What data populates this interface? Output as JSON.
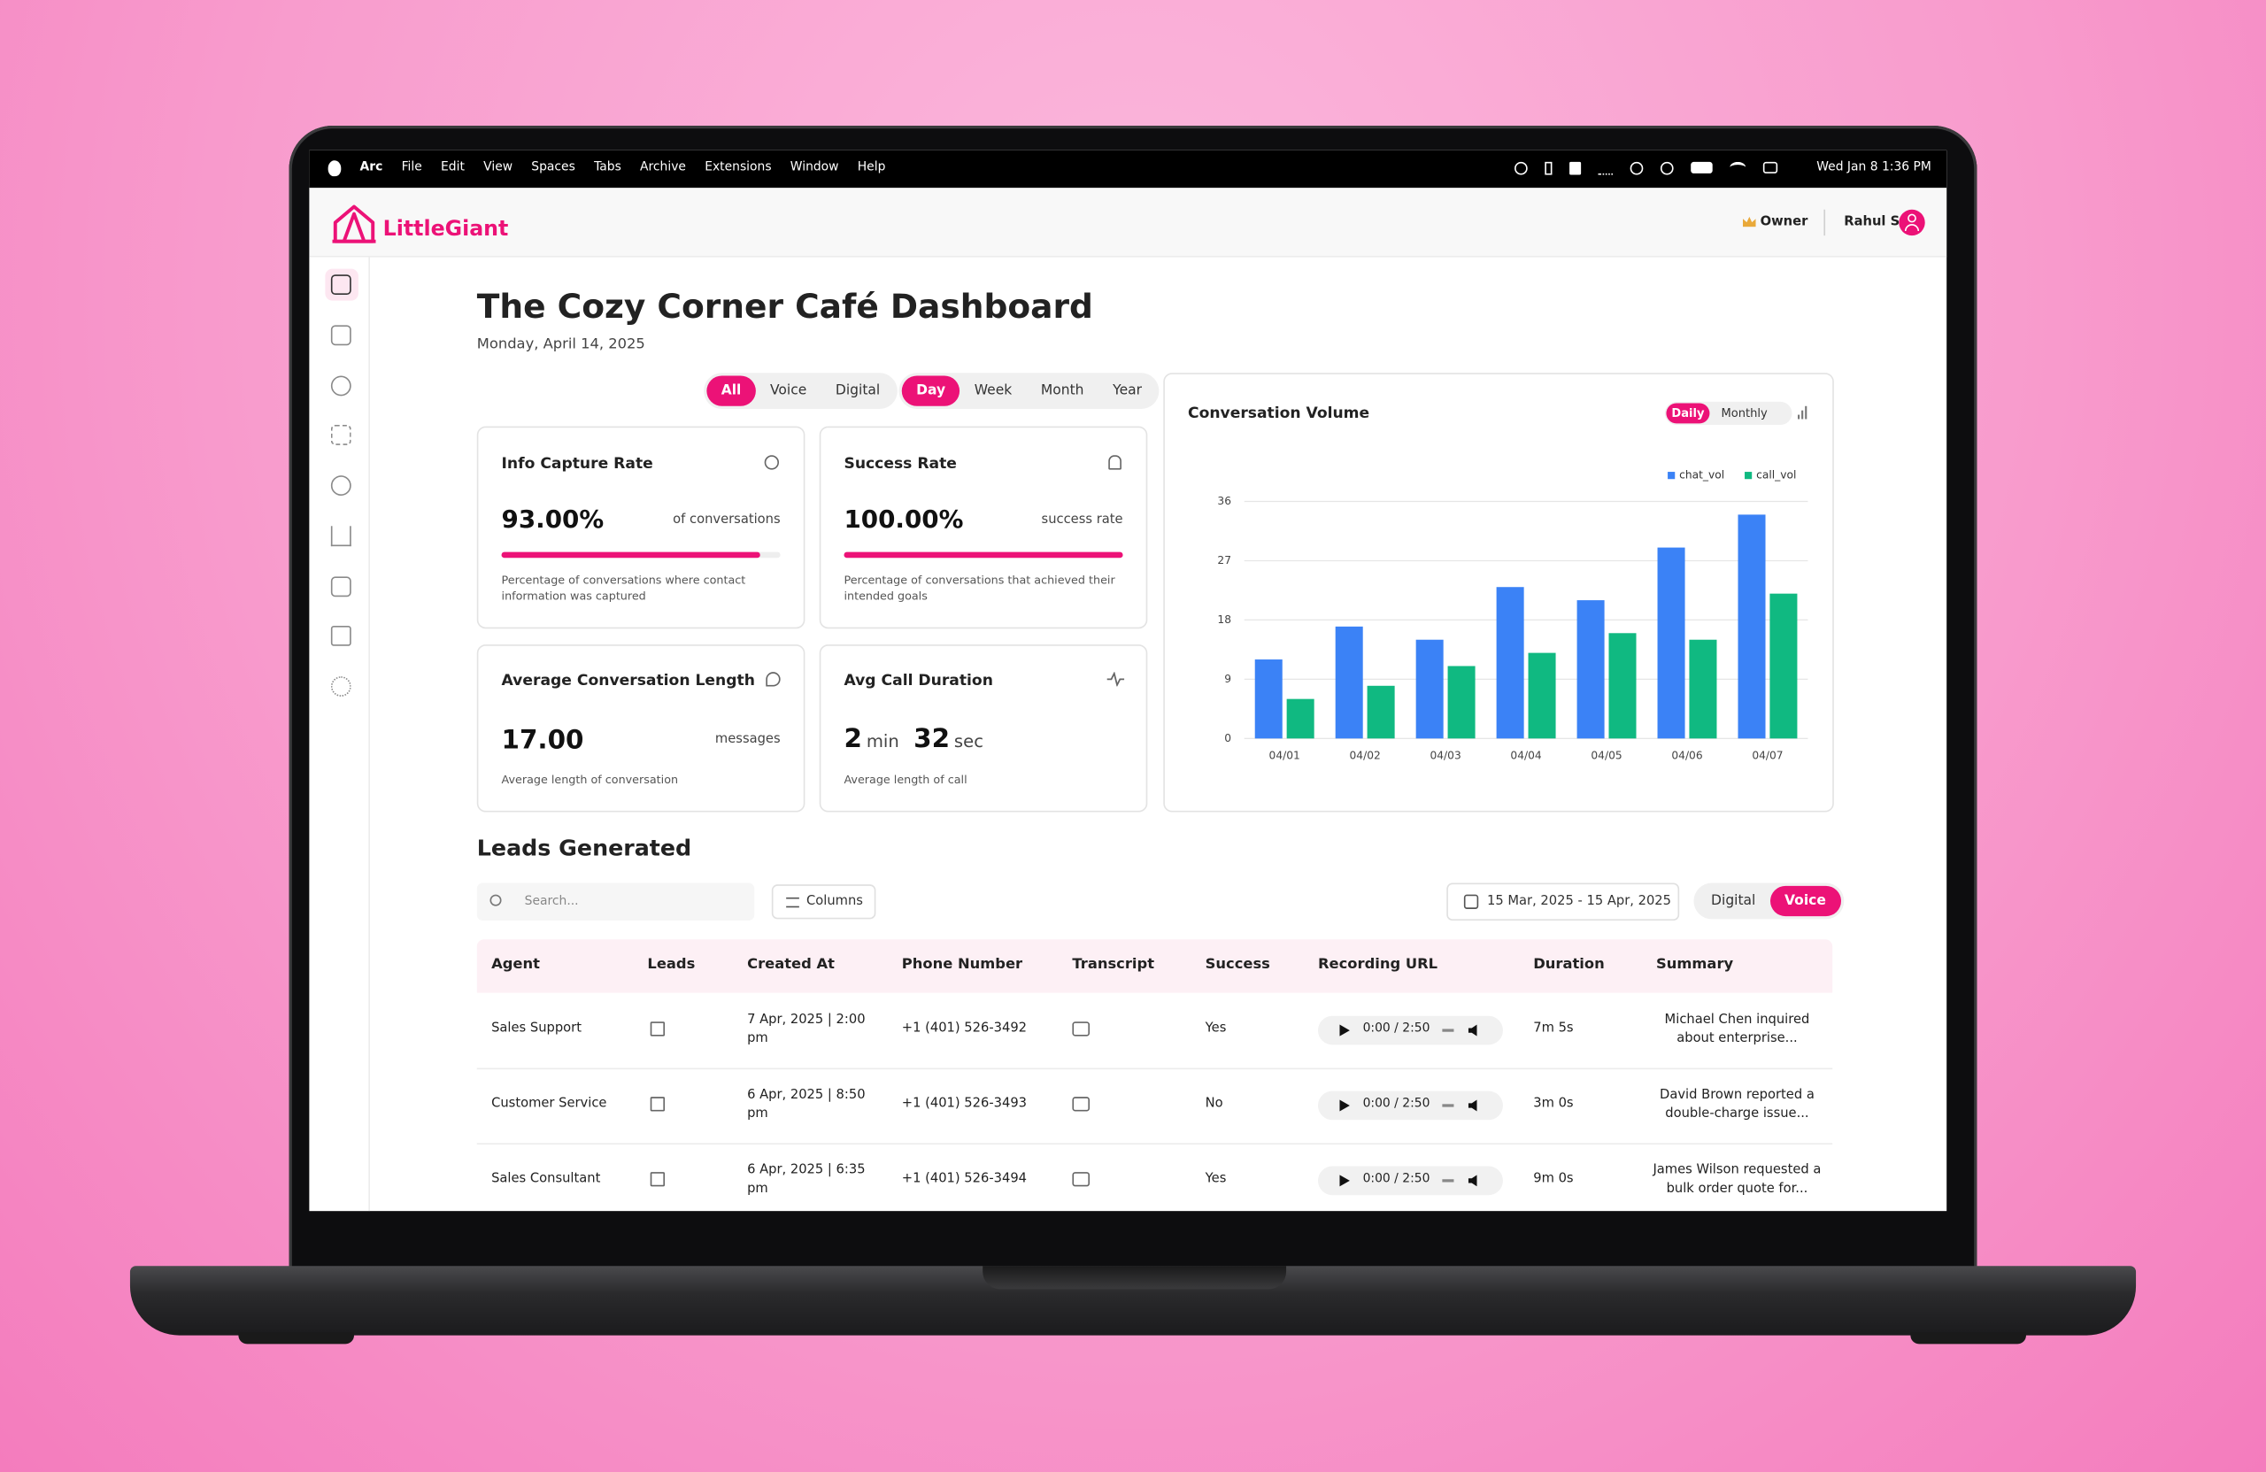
{
  "menubar": {
    "app": "Arc",
    "items": [
      "File",
      "Edit",
      "View",
      "Spaces",
      "Tabs",
      "Archive",
      "Extensions",
      "Window",
      "Help"
    ],
    "clock": "Wed Jan 8  1:36 PM"
  },
  "header": {
    "brand": "LittleGiant",
    "role": "Owner",
    "user": "Rahul S"
  },
  "page": {
    "title": "The Cozy Corner Café Dashboard",
    "date": "Monday, April 14, 2025",
    "channel_filters": [
      "All",
      "Voice",
      "Digital"
    ],
    "period_filters": [
      "Day",
      "Week",
      "Month",
      "Year"
    ]
  },
  "metrics": {
    "info_capture": {
      "title": "Info Capture Rate",
      "value": 93,
      "value_label": "93.00%",
      "unit": "of conversations",
      "description": "Percentage of conversations where contact information was captured"
    },
    "success": {
      "title": "Success Rate",
      "value": 100,
      "value_label": "100.00%",
      "unit": "success rate",
      "description": "Percentage of conversations that achieved their intended goals"
    },
    "avg_length": {
      "title": "Average Conversation Length",
      "value": "17.00",
      "unit": "messages",
      "description": "Average length of conversation"
    },
    "call_duration": {
      "title": "Avg Call Duration",
      "minutes": "2",
      "minutes_unit": "min",
      "seconds": "32",
      "seconds_unit": "sec",
      "description": "Average length of call"
    }
  },
  "chart_controls": [
    "Daily",
    "Monthly"
  ],
  "chart_data": {
    "type": "bar",
    "title": "Conversation Volume",
    "categories": [
      "04/01",
      "04/02",
      "04/03",
      "04/04",
      "04/05",
      "04/06",
      "04/07"
    ],
    "series": [
      {
        "name": "chat_vol",
        "color": "#3b82f6",
        "values": [
          12,
          17,
          15,
          23,
          21,
          29,
          34
        ]
      },
      {
        "name": "call_vol",
        "color": "#10b981",
        "values": [
          6,
          8,
          11,
          13,
          16,
          15,
          22
        ]
      }
    ],
    "ylim": [
      0,
      36
    ],
    "yticks": [
      0,
      9,
      18,
      27,
      36
    ],
    "grid": true,
    "legend": "top-right"
  },
  "leads": {
    "title": "Leads Generated",
    "search_placeholder": "Search...",
    "columns_button": "Columns",
    "date_range": "15 Mar, 2025 - 15 Apr, 2025",
    "channel_toggle": [
      "Digital",
      "Voice"
    ],
    "columns": [
      "Agent",
      "Leads",
      "Created At",
      "Phone Number",
      "Transcript",
      "Success",
      "Recording URL",
      "Duration",
      "Summary"
    ],
    "rows": [
      {
        "agent": "Sales Support",
        "created_at": "7 Apr, 2025 | 2:00 pm",
        "phone": "+1 (401) 526-3492",
        "success": "Yes",
        "recording": "0:00 / 2:50",
        "duration": "7m 5s",
        "summary": "Michael Chen inquired about enterprise..."
      },
      {
        "agent": "Customer Service",
        "created_at": "6 Apr, 2025 | 8:50 pm",
        "phone": "+1 (401) 526-3493",
        "success": "No",
        "recording": "0:00 / 2:50",
        "duration": "3m 0s",
        "summary": "David Brown reported a double-charge issue..."
      },
      {
        "agent": "Sales Consultant",
        "created_at": "6 Apr, 2025 | 6:35 pm",
        "phone": "+1 (401) 526-3494",
        "success": "Yes",
        "recording": "0:00 / 2:50",
        "duration": "9m 0s",
        "summary": "James Wilson requested a bulk order quote for..."
      }
    ]
  }
}
